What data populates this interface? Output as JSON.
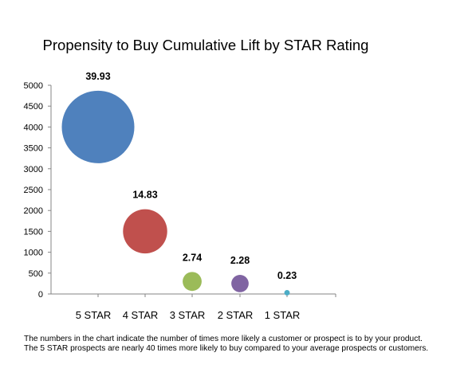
{
  "chart_data": {
    "type": "bubble",
    "title": "Propensity to Buy Cumulative Lift by STAR Rating",
    "categories": [
      "5 STAR",
      "4 STAR",
      "3 STAR",
      "2 STAR",
      "1 STAR"
    ],
    "y_values": [
      4000,
      1500,
      300,
      250,
      30
    ],
    "bubble_labels": [
      "39.93",
      "14.83",
      "2.74",
      "2.28",
      "0.23"
    ],
    "bubble_sizes": [
      39.93,
      14.83,
      2.74,
      2.28,
      0.23
    ],
    "colors": [
      "#4f81bd",
      "#c0504d",
      "#9bbb59",
      "#8064a2",
      "#4bacc6"
    ],
    "ylim": [
      0,
      5000
    ],
    "y_ticks": [
      0,
      500,
      1000,
      1500,
      2000,
      2500,
      3000,
      3500,
      4000,
      4500,
      5000
    ],
    "xlabel": "",
    "ylabel": "",
    "grid": false,
    "legend": "none"
  },
  "footnotes": {
    "line1": "The numbers in the chart indicate the number of times more likely a customer or prospect is to by your product.",
    "line2": "The 5 STAR prospects are nearly 40 times more likely to buy compared to your average prospects or customers."
  }
}
